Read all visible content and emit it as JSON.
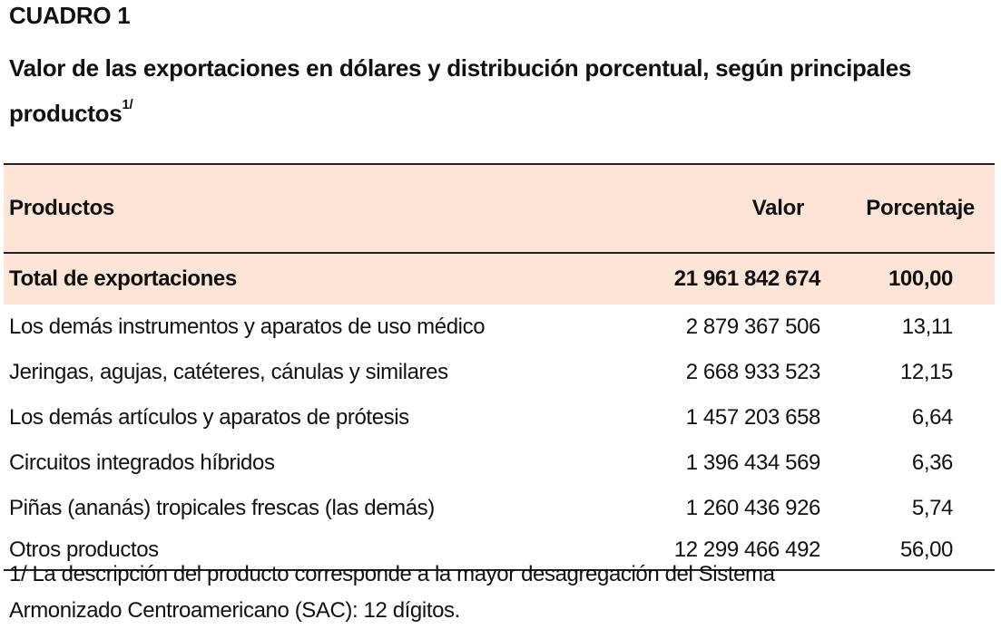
{
  "header": {
    "label": "CUADRO 1",
    "title": "Valor de las exportaciones en dólares y distribución porcentual, según principales productos",
    "title_note_ref": "1/"
  },
  "colors": {
    "header_fill": "#fce4d6",
    "total_fill": "#fce4d6",
    "rule": "#222222"
  },
  "table": {
    "columns": [
      "Productos",
      "Valor",
      "Porcentaje"
    ],
    "total": {
      "product": "Total de exportaciones",
      "value": "21 961 842 674",
      "percent": "100,00"
    },
    "rows": [
      {
        "product": "Los demás instrumentos y aparatos de uso médico",
        "value": "2 879 367 506",
        "percent": "13,11"
      },
      {
        "product": "Jeringas, agujas, catéteres, cánulas y similares",
        "value": "2 668 933 523",
        "percent": "12,15"
      },
      {
        "product": "Los demás artículos y aparatos de prótesis",
        "value": "1 457 203 658",
        "percent": "6,64"
      },
      {
        "product": "Circuitos integrados híbridos",
        "value": "1 396 434 569",
        "percent": "6,36"
      },
      {
        "product": "Piñas (ananás) tropicales frescas (las demás)",
        "value": "1 260 436 926",
        "percent": "5,74"
      },
      {
        "product": "Otros productos",
        "value": "12 299 466 492",
        "percent": "56,00"
      }
    ]
  },
  "footnote": {
    "line1": "1/ La descripción del producto corresponde a la mayor desagregación del Sistema",
    "line2": "Armonizado Centroamericano (SAC): 12 dígitos."
  }
}
